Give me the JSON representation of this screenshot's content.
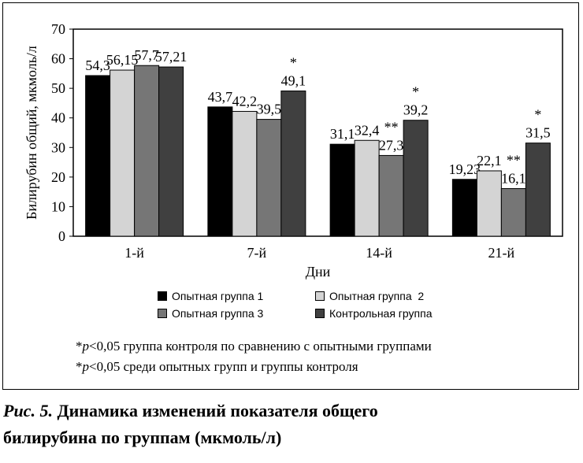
{
  "chart_data": {
    "type": "bar",
    "title": "",
    "xlabel": "Дни",
    "ylabel": "Билирубин общий, мкмоль/л",
    "ylim": [
      0,
      70
    ],
    "yticks": [
      "0",
      "10",
      "20",
      "30",
      "40",
      "50",
      "60",
      "70"
    ],
    "grid": false,
    "legend_position": "bottom",
    "categories": [
      "1-й",
      "7-й",
      "14-й",
      "21-й"
    ],
    "series": [
      {
        "name": "Опытная группа 1",
        "color": "#000000",
        "values": [
          54.3,
          43.7,
          31.1,
          19.23
        ],
        "labels": [
          "54,3",
          "43,7",
          "31,1",
          "19,23"
        ],
        "marks": [
          "",
          "",
          "",
          ""
        ]
      },
      {
        "name": "Опытная группа  2",
        "color": "#d4d4d4",
        "values": [
          56.15,
          42.2,
          32.4,
          22.1
        ],
        "labels": [
          "56,15",
          "42,2",
          "32,4",
          "22,1"
        ],
        "marks": [
          "",
          "",
          "",
          ""
        ]
      },
      {
        "name": "Опытная группа 3",
        "color": "#767676",
        "values": [
          57.7,
          39.5,
          27.3,
          16.1
        ],
        "labels": [
          "57,7",
          "39,5",
          "27,3",
          "16,1"
        ],
        "marks": [
          "",
          "",
          "**",
          "**"
        ]
      },
      {
        "name": "Контрольная группа",
        "color": "#404040",
        "values": [
          57.21,
          49.1,
          39.2,
          31.5
        ],
        "labels": [
          "57,21",
          "49,1",
          "39,2",
          "31,5"
        ],
        "marks": [
          "",
          "*",
          "*",
          "*"
        ]
      }
    ]
  },
  "notes": {
    "note1_prefix": "*",
    "note1_p": "p",
    "note1_text": "<0,05 группа контроля по сравнению с опытными группами",
    "note2_prefix": "*",
    "note2_p": "p",
    "note2_text": "<0,05 среди опытных групп и группы контроля"
  },
  "caption": {
    "fig_label": "Рис. 5.",
    "line1": "Динамика изменений показателя общего",
    "line2": "билирубина по группам (мкмоль/л)"
  }
}
